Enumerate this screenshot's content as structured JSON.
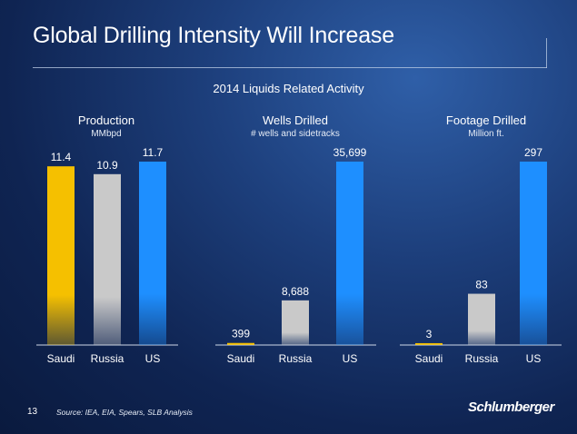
{
  "slide": {
    "title": "Global Drilling Intensity Will Increase",
    "subtitle": "2014 Liquids Related Activity",
    "page_number": "13",
    "source": "Source:    IEA, EIA, Spears, SLB Analysis",
    "logo_text": "Schlumberger"
  },
  "colors": {
    "saudi": "#f5c000",
    "russia": "#c9c9c9",
    "us": "#1e8fff"
  },
  "chart_data": [
    {
      "type": "bar",
      "title": "Production",
      "subtitle": "MMbpd",
      "categories": [
        "Saudi",
        "Russia",
        "US"
      ],
      "values": [
        11.4,
        10.9,
        11.7
      ],
      "value_labels": [
        "11.4",
        "10.9",
        "11.7"
      ],
      "ylim": [
        0,
        11.7
      ]
    },
    {
      "type": "bar",
      "title": "Wells Drilled",
      "subtitle": "# wells and sidetracks",
      "categories": [
        "Saudi",
        "Russia",
        "US"
      ],
      "values": [
        399,
        8688,
        35699
      ],
      "value_labels": [
        "399",
        "8,688",
        "35,699"
      ],
      "ylim": [
        0,
        35699
      ]
    },
    {
      "type": "bar",
      "title": "Footage Drilled",
      "subtitle": "Million ft.",
      "categories": [
        "Saudi",
        "Russia",
        "US"
      ],
      "values": [
        3,
        83,
        297
      ],
      "value_labels": [
        "3",
        "83",
        "297"
      ],
      "ylim": [
        0,
        297
      ]
    }
  ]
}
